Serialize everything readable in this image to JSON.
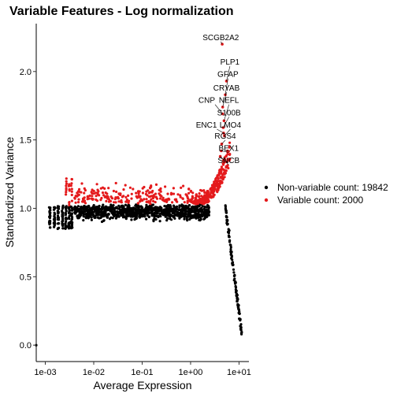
{
  "chart_data": {
    "type": "scatter",
    "title": "Variable Features - Log normalization",
    "xlabel": "Average Expression",
    "ylabel": "Standardized Variance",
    "x_scale": "log10",
    "xlim": [
      0.00065,
      16
    ],
    "ylim": [
      -0.12,
      2.35
    ],
    "x_ticks": [
      {
        "value": 0.001,
        "label": "1e-03"
      },
      {
        "value": 0.01,
        "label": "1e-02"
      },
      {
        "value": 0.1,
        "label": "1e-01"
      },
      {
        "value": 1,
        "label": "1e+00"
      },
      {
        "value": 10,
        "label": "1e+01"
      }
    ],
    "y_ticks": [
      {
        "value": 0.0,
        "label": "0.0"
      },
      {
        "value": 0.5,
        "label": "0.5"
      },
      {
        "value": 1.0,
        "label": "1.0"
      },
      {
        "value": 1.5,
        "label": "1.5"
      },
      {
        "value": 2.0,
        "label": "2.0"
      }
    ],
    "grid": false,
    "legend_position": "right",
    "series": [
      {
        "name": "Non-variable count: 19842",
        "color": "#000000",
        "count": 19842
      },
      {
        "name": "Variable count: 2000",
        "color": "#e41a1c",
        "count": 2000
      }
    ],
    "labeled_genes": [
      {
        "gene": "SCGB2A2",
        "x": 4.5,
        "y": 2.2
      },
      {
        "gene": "PLP1",
        "x": 5.5,
        "y": 1.93
      },
      {
        "gene": "GFAP",
        "x": 5.2,
        "y": 1.83
      },
      {
        "gene": "CRYAB",
        "x": 4.6,
        "y": 1.74
      },
      {
        "gene": "CNP",
        "x": 4.6,
        "y": 1.69
      },
      {
        "gene": "NEFL",
        "x": 4.9,
        "y": 1.64
      },
      {
        "gene": "S100B",
        "x": 4.7,
        "y": 1.59
      },
      {
        "gene": "ENC1",
        "x": 4.8,
        "y": 1.55
      },
      {
        "gene": "LMO4",
        "x": 5.0,
        "y": 1.53
      },
      {
        "gene": "RGS4",
        "x": 4.4,
        "y": 1.47
      },
      {
        "gene": "BEX1",
        "x": 4.3,
        "y": 1.42
      },
      {
        "gene": "SNCB",
        "x": 4.1,
        "y": 1.38
      }
    ],
    "label_positions": [
      {
        "gene": "SCGB2A2",
        "lx": 4.2,
        "ly": 2.23,
        "anchor": "middle"
      },
      {
        "gene": "PLP1",
        "lx": 6.5,
        "ly": 2.05,
        "anchor": "middle"
      },
      {
        "gene": "GFAP",
        "lx": 5.9,
        "ly": 1.96,
        "anchor": "middle"
      },
      {
        "gene": "CRYAB",
        "lx": 5.5,
        "ly": 1.86,
        "anchor": "middle"
      },
      {
        "gene": "CNP",
        "lx": 3.2,
        "ly": 1.77,
        "anchor": "end"
      },
      {
        "gene": "NEFL",
        "lx": 6.2,
        "ly": 1.77,
        "anchor": "middle"
      },
      {
        "gene": "S100B",
        "lx": 6.2,
        "ly": 1.68,
        "anchor": "middle"
      },
      {
        "gene": "ENC1",
        "lx": 3.5,
        "ly": 1.59,
        "anchor": "end"
      },
      {
        "gene": "LMO4",
        "lx": 6.6,
        "ly": 1.59,
        "anchor": "middle"
      },
      {
        "gene": "RGS4",
        "lx": 5.2,
        "ly": 1.51,
        "anchor": "middle"
      },
      {
        "gene": "BEX1",
        "lx": 6.1,
        "ly": 1.42,
        "anchor": "middle"
      },
      {
        "gene": "SNCB",
        "lx": 6.1,
        "ly": 1.33,
        "anchor": "middle"
      }
    ]
  }
}
